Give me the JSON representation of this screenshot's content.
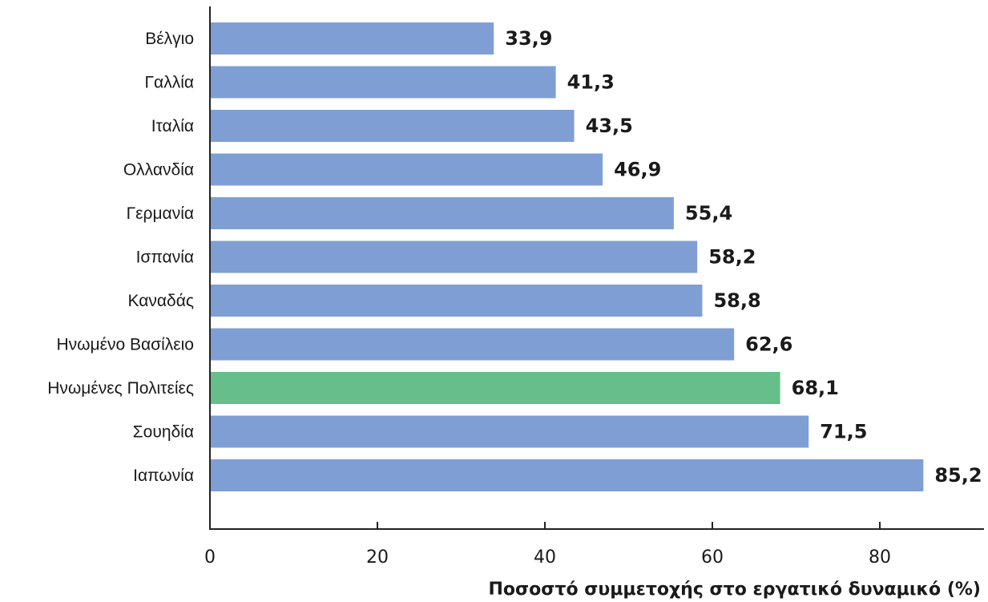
{
  "chart_data": {
    "type": "bar",
    "orientation": "horizontal",
    "categories": [
      "Βέλγιο",
      "Γαλλία",
      "Ιταλία",
      "Ολλανδία",
      "Γερμανία",
      "Ισπανία",
      "Καναδάς",
      "Ηνωμένο Βασίλειο",
      "Ηνωμένες Πολιτείες",
      "Σουηδία",
      "Ιαπωνία"
    ],
    "values": [
      33.9,
      41.3,
      43.5,
      46.9,
      55.4,
      58.2,
      58.8,
      62.6,
      68.1,
      71.5,
      85.2
    ],
    "value_labels": [
      "33,9",
      "41,3",
      "43,5",
      "46,9",
      "55,4",
      "58,2",
      "58,8",
      "62,6",
      "68,1",
      "71,5",
      "85,2"
    ],
    "highlight_category": "Ηνωμένες Πολιτείες",
    "xticks": [
      0,
      20,
      40,
      60,
      80
    ],
    "xlim": [
      0,
      92
    ],
    "xlabel": "Ποσοστό συμμετοχής στο εργατικό δυναμικό (%)",
    "title": "",
    "grid": false,
    "colors": {
      "bar": "#7f9fd4",
      "highlight": "#66bf8a",
      "axis": "#222222"
    }
  }
}
